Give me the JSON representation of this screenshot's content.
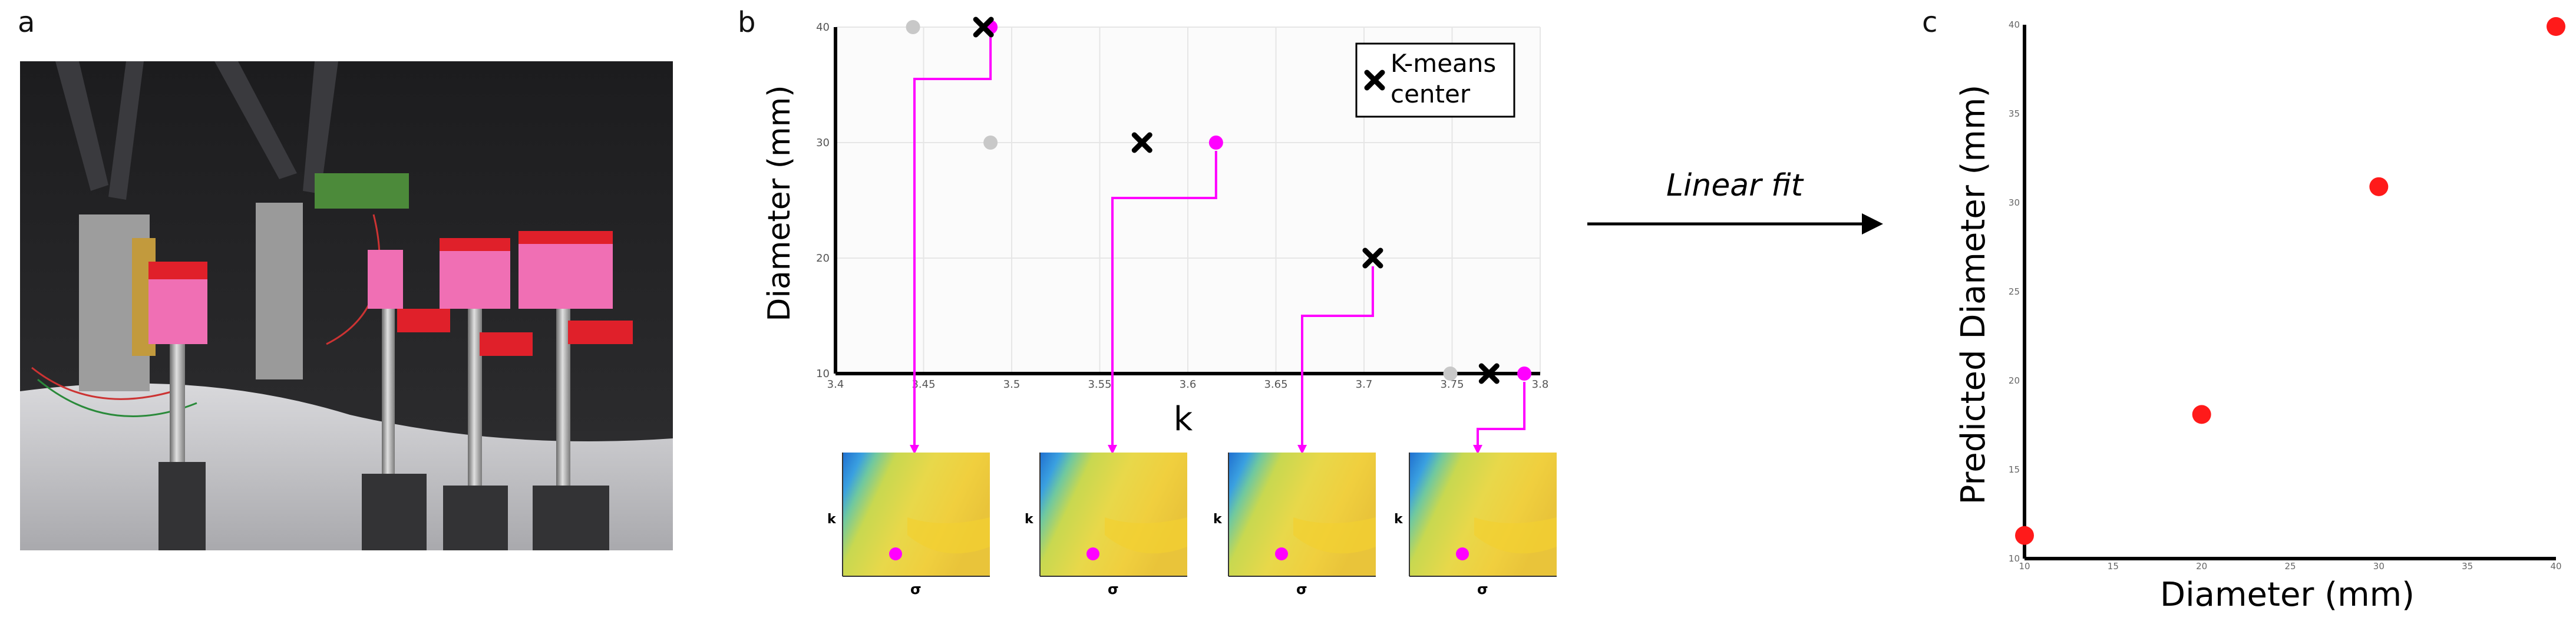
{
  "panels": {
    "a": "a",
    "b": "b",
    "c": "c"
  },
  "arrow_label": "Linear fit",
  "heatmap_axis": {
    "y": "k",
    "x": "σ"
  },
  "colors": {
    "kmeans": "#000000",
    "magenta": "#ff00ff",
    "gray": "#c8c8c8",
    "red": "#ff1a1a"
  },
  "chart_data": [
    {
      "type": "scatter",
      "xlabel": "k",
      "ylabel": "Diameter (mm)",
      "xlim": [
        3.4,
        3.8
      ],
      "ylim": [
        10,
        40
      ],
      "xticks": [
        "3.4",
        "3.45",
        "3.5",
        "3.55",
        "3.6",
        "3.65",
        "3.7",
        "3.75",
        "3.8"
      ],
      "xtick_values": [
        3.4,
        3.45,
        3.5,
        3.55,
        3.6,
        3.65,
        3.7,
        3.75,
        3.8
      ],
      "yticks": [
        "10",
        "20",
        "30",
        "40"
      ],
      "ytick_values": [
        10,
        20,
        30,
        40
      ],
      "grid": true,
      "legend": {
        "label": "K-means\ncenter",
        "placement": "top-right"
      },
      "series": [
        {
          "name": "K-means center",
          "marker": "x",
          "color": "#000000",
          "points": [
            {
              "x": 3.484,
              "y": 40
            },
            {
              "x": 3.574,
              "y": 30
            },
            {
              "x": 3.705,
              "y": 20
            },
            {
              "x": 3.771,
              "y": 10
            }
          ]
        },
        {
          "marker": "dot",
          "color": "#ff00ff",
          "points": [
            {
              "x": 3.488,
              "y": 40
            },
            {
              "x": 3.616,
              "y": 30
            },
            {
              "x": 3.791,
              "y": 10
            }
          ]
        },
        {
          "marker": "dot",
          "color": "#c8c8c8",
          "points": [
            {
              "x": 3.444,
              "y": 40
            },
            {
              "x": 3.488,
              "y": 30
            },
            {
              "x": 3.749,
              "y": 10
            }
          ]
        }
      ]
    },
    {
      "type": "scatter",
      "xlabel": "Diameter (mm)",
      "ylabel": "Predicted Diameter (mm)",
      "xlim": [
        10,
        40
      ],
      "ylim": [
        10,
        40
      ],
      "xticks": [
        "10",
        "15",
        "20",
        "25",
        "30",
        "35",
        "40"
      ],
      "xtick_values": [
        10,
        15,
        20,
        25,
        30,
        35,
        40
      ],
      "yticks": [
        "10",
        "15",
        "20",
        "25",
        "30",
        "35",
        "40"
      ],
      "ytick_values": [
        10,
        15,
        20,
        25,
        30,
        35,
        40
      ],
      "grid": false,
      "series": [
        {
          "color": "#ff1a1a",
          "points": [
            {
              "x": 10,
              "y": 11.3
            },
            {
              "x": 20,
              "y": 18.1
            },
            {
              "x": 30,
              "y": 30.9
            },
            {
              "x": 40,
              "y": 39.9
            }
          ]
        }
      ]
    }
  ]
}
